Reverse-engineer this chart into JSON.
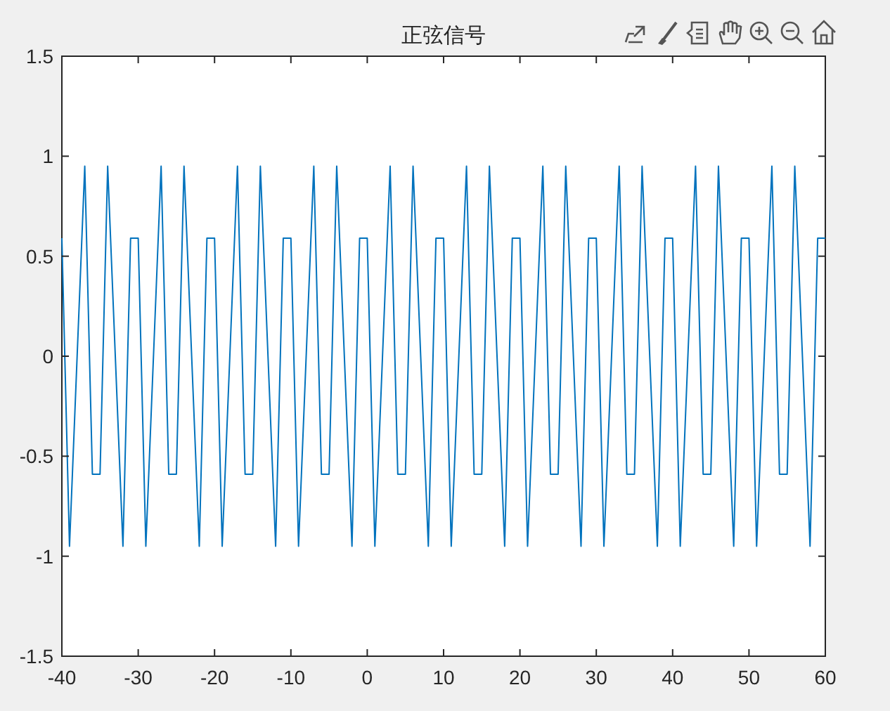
{
  "chart_data": {
    "type": "line",
    "title": "正弦信号",
    "x": [
      -40,
      -39,
      -38,
      -37,
      -36,
      -35,
      -34,
      -33,
      -32,
      -31,
      -30,
      -29,
      -28,
      -27,
      -26,
      -25,
      -24,
      -23,
      -22,
      -21,
      -20,
      -19,
      -18,
      -17,
      -16,
      -15,
      -14,
      -13,
      -12,
      -11,
      -10,
      -9,
      -8,
      -7,
      -6,
      -5,
      -4,
      -3,
      -2,
      -1,
      0,
      1,
      2,
      3,
      4,
      5,
      6,
      7,
      8,
      9,
      10,
      11,
      12,
      13,
      14,
      15,
      16,
      17,
      18,
      19,
      20,
      21,
      22,
      23,
      24,
      25,
      26,
      27,
      28,
      29,
      30,
      31,
      32,
      33,
      34,
      35,
      36,
      37,
      38,
      39,
      40,
      41,
      42,
      43,
      44,
      45,
      46,
      47,
      48,
      49,
      50,
      51,
      52,
      53,
      54,
      55,
      56,
      57,
      58,
      59,
      60
    ],
    "series": [
      {
        "color": "#0072bd",
        "values": [
          0.59,
          -0.95,
          0,
          0.95,
          -0.59,
          -0.59,
          0.95,
          0,
          -0.95,
          0.59,
          0.59,
          -0.95,
          0,
          0.95,
          -0.59,
          -0.59,
          0.95,
          0,
          -0.95,
          0.59,
          0.59,
          -0.95,
          0,
          0.95,
          -0.59,
          -0.59,
          0.95,
          0,
          -0.95,
          0.59,
          0.59,
          -0.95,
          0,
          0.95,
          -0.59,
          -0.59,
          0.95,
          0,
          -0.95,
          0.59,
          0.59,
          -0.95,
          0,
          0.95,
          -0.59,
          -0.59,
          0.95,
          0,
          -0.95,
          0.59,
          0.59,
          -0.95,
          0,
          0.95,
          -0.59,
          -0.59,
          0.95,
          0,
          -0.95,
          0.59,
          0.59,
          -0.95,
          0,
          0.95,
          -0.59,
          -0.59,
          0.95,
          0,
          -0.95,
          0.59,
          0.59,
          -0.95,
          0,
          0.95,
          -0.59,
          -0.59,
          0.95,
          0,
          -0.95,
          0.59,
          0.59,
          -0.95,
          0,
          0.95,
          -0.59,
          -0.59,
          0.95,
          0,
          -0.95,
          0.59,
          0.59,
          -0.95,
          0,
          0.95,
          -0.59,
          -0.59,
          0.95,
          0,
          -0.95,
          0.59,
          0.59
        ]
      }
    ],
    "xlim": [
      -40,
      60
    ],
    "xticks": [
      -40,
      -30,
      -20,
      -10,
      0,
      10,
      20,
      30,
      40,
      50,
      60
    ],
    "ylim": [
      -1.5,
      1.5
    ],
    "yticks": [
      -1.5,
      -1,
      -0.5,
      0,
      0.5,
      1,
      1.5
    ],
    "grid": false,
    "marker": "none",
    "line_style": "solid"
  }
}
